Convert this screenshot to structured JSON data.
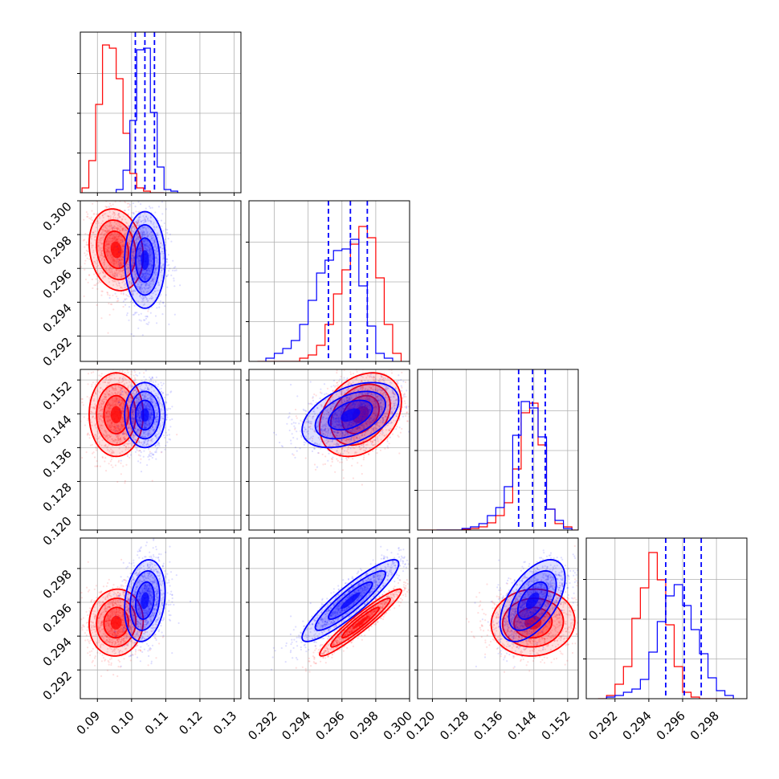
{
  "colors": {
    "red": "#ff0000",
    "blue": "#0000ff",
    "grid": "#b0b0b0",
    "axis": "#000000"
  },
  "chart_data": {
    "type": "corner",
    "parameters": [
      {
        "range": [
          0.085,
          0.132
        ],
        "ticks": [
          0.09,
          0.1,
          0.11,
          0.12,
          0.13
        ],
        "tick_labels": [
          "0.09",
          "0.10",
          "0.11",
          "0.12",
          "0.13"
        ]
      },
      {
        "range": [
          0.2905,
          0.3
        ],
        "ticks": [
          0.292,
          0.294,
          0.296,
          0.298,
          0.3
        ],
        "tick_labels": [
          "0.292",
          "0.294",
          "0.296",
          "0.298",
          "0.300"
        ]
      },
      {
        "range": [
          0.1165,
          0.1545
        ],
        "ticks": [
          0.12,
          0.128,
          0.136,
          0.144,
          0.152
        ],
        "tick_labels": [
          "0.120",
          "0.128",
          "0.136",
          "0.144",
          "0.152"
        ]
      },
      {
        "range": [
          0.2903,
          0.2998
        ],
        "ticks": [
          0.292,
          0.294,
          0.296,
          0.298
        ],
        "tick_labels": [
          "0.292",
          "0.294",
          "0.296",
          "0.298"
        ]
      }
    ],
    "series": [
      {
        "color": "red",
        "mean": [
          0.0955,
          0.2971,
          0.1438,
          0.2948
        ],
        "sd": [
          0.0036,
          0.0011,
          0.0045,
          0.0009
        ],
        "corr": {
          "1-0": -0.15,
          "2-0": 0.0,
          "2-1": 0.3,
          "3-0": 0.05,
          "3-1": 0.95,
          "3-2": 0.05
        },
        "hist": [
          {
            "edges": [
              0.0855,
              0.0875,
              0.0895,
              0.0915,
              0.0935,
              0.0955,
              0.0975,
              0.0995,
              0.1015,
              0.1035,
              0.1055,
              0.1075,
              0.1095
            ],
            "counts": [
              0.03,
              0.2,
              0.55,
              0.92,
              0.9,
              0.71,
              0.37,
              0.12,
              0.03,
              0.01,
              0.0,
              0.0
            ]
          },
          {
            "edges": [
              0.291,
              0.2915,
              0.292,
              0.2925,
              0.293,
              0.2935,
              0.294,
              0.2945,
              0.295,
              0.2955,
              0.296,
              0.2965,
              0.297,
              0.2975,
              0.298,
              0.2985,
              0.299,
              0.2995
            ],
            "counts": [
              0.0,
              0.0,
              0.0,
              0.0,
              0.0,
              0.02,
              0.04,
              0.1,
              0.23,
              0.42,
              0.57,
              0.73,
              0.84,
              0.77,
              0.52,
              0.23,
              0.05
            ]
          },
          {
            "edges": [
              0.117,
              0.119,
              0.121,
              0.123,
              0.125,
              0.127,
              0.129,
              0.131,
              0.133,
              0.135,
              0.137,
              0.139,
              0.141,
              0.143,
              0.145,
              0.147,
              0.149,
              0.151,
              0.153,
              0.155
            ],
            "counts": [
              0.0,
              0.0,
              0.0,
              0.0,
              0.0,
              0.005,
              0.01,
              0.02,
              0.045,
              0.09,
              0.17,
              0.38,
              0.73,
              0.79,
              0.53,
              0.13,
              0.04,
              0.02,
              0.0
            ]
          },
          {
            "edges": [
              0.291,
              0.2915,
              0.292,
              0.2925,
              0.293,
              0.2935,
              0.294,
              0.2945,
              0.295,
              0.2955,
              0.296,
              0.2965,
              0.297,
              0.2975,
              0.298,
              0.2985,
              0.299
            ],
            "counts": [
              0.0,
              0.02,
              0.09,
              0.2,
              0.5,
              0.69,
              0.91,
              0.74,
              0.46,
              0.2,
              0.04,
              0.01,
              0.0,
              0.0,
              0.0,
              0.0
            ]
          }
        ]
      },
      {
        "color": "blue",
        "mean": [
          0.1039,
          0.2965,
          0.1437,
          0.2961
        ],
        "sd": [
          0.0027,
          0.0013,
          0.0035,
          0.0011
        ],
        "corr": {
          "1-0": 0.0,
          "2-0": 0.0,
          "2-1": 0.45,
          "3-0": 0.2,
          "3-1": 0.9,
          "3-2": 0.55
        },
        "quantiles": [
          [
            0.1011,
            0.1039,
            0.1067
          ],
          [
            0.2952,
            0.2965,
            0.2975
          ],
          [
            0.1404,
            0.1437,
            0.1467
          ],
          [
            0.295,
            0.2961,
            0.2971
          ]
        ],
        "hist": [
          {
            "edges": [
              0.0955,
              0.0975,
              0.0995,
              0.1015,
              0.1035,
              0.1055,
              0.1075,
              0.1095,
              0.1115,
              0.1135
            ],
            "counts": [
              0.02,
              0.14,
              0.45,
              0.89,
              0.9,
              0.5,
              0.16,
              0.02,
              0.01
            ]
          },
          {
            "edges": [
              0.2915,
              0.292,
              0.2925,
              0.293,
              0.2935,
              0.294,
              0.2945,
              0.295,
              0.2955,
              0.296,
              0.2965,
              0.297,
              0.2975,
              0.298,
              0.2985,
              0.299
            ],
            "counts": [
              0.02,
              0.05,
              0.08,
              0.13,
              0.23,
              0.38,
              0.55,
              0.63,
              0.69,
              0.7,
              0.76,
              0.47,
              0.22,
              0.05,
              0.02
            ]
          },
          {
            "edges": [
              0.121,
              0.123,
              0.125,
              0.127,
              0.129,
              0.131,
              0.133,
              0.135,
              0.137,
              0.139,
              0.141,
              0.143,
              0.145,
              0.147,
              0.149,
              0.151,
              0.153
            ],
            "counts": [
              0.0,
              0.0,
              0.0,
              0.01,
              0.02,
              0.04,
              0.09,
              0.14,
              0.27,
              0.59,
              0.8,
              0.76,
              0.58,
              0.13,
              0.06,
              0.01
            ]
          },
          {
            "edges": [
              0.2915,
              0.292,
              0.2925,
              0.293,
              0.2935,
              0.294,
              0.2945,
              0.295,
              0.2955,
              0.296,
              0.2965,
              0.297,
              0.2975,
              0.298,
              0.2985,
              0.299
            ],
            "counts": [
              0.01,
              0.02,
              0.04,
              0.06,
              0.12,
              0.29,
              0.48,
              0.64,
              0.71,
              0.58,
              0.43,
              0.28,
              0.13,
              0.05,
              0.02
            ]
          }
        ]
      }
    ],
    "grid": true,
    "contour_levels": [
      1,
      1.6,
      2.2
    ]
  }
}
